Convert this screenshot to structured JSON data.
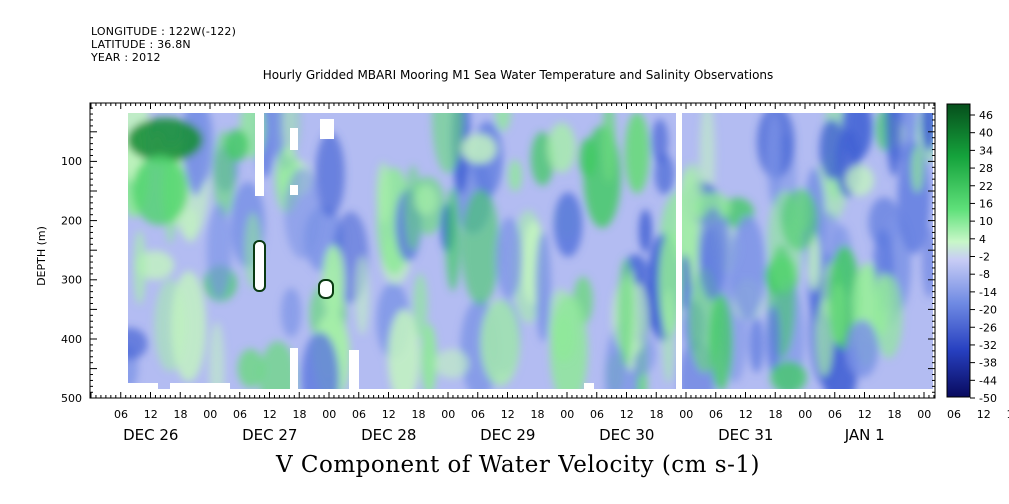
{
  "header": {
    "longitude": "LONGITUDE : 122W(-122)",
    "latitude": "LATITUDE : 36.8N",
    "year": "YEAR : 2012"
  },
  "chart_data": {
    "type": "heatmap",
    "title": "Hourly Gridded MBARI Mooring M1 Sea Water Temperature and Salinity Observations",
    "xlabel": "V Component of Water Velocity (cm s-1)",
    "ylabel": "DEPTH (m)",
    "y_ticks": [
      100,
      200,
      300,
      400,
      500
    ],
    "ylim": [
      500,
      0
    ],
    "x_hour_ticks": [
      "06",
      "12",
      "18",
      "00",
      "06",
      "12",
      "18",
      "00",
      "06",
      "12",
      "18",
      "00",
      "06",
      "12",
      "18",
      "00",
      "06",
      "12",
      "18",
      "00",
      "06",
      "12",
      "18",
      "00",
      "06",
      "12",
      "18",
      "00",
      "06",
      "12",
      "18",
      "00"
    ],
    "x_day_labels": [
      "DEC 26",
      "DEC 27",
      "DEC 28",
      "DEC 29",
      "DEC 30",
      "DEC 31",
      "JAN  1"
    ],
    "colorbar_labels": [
      "46",
      "40",
      "34",
      "28",
      "22",
      "16",
      "10",
      "4",
      "-2",
      "-8",
      "-14",
      "-20",
      "-26",
      "-32",
      "-38",
      "-44",
      "-50"
    ],
    "colors": {
      "strong_negative": "#0a0f6e",
      "mid_negative": "#4f6fd8",
      "weak_negative": "#aab4f0",
      "weak_positive": "#a8f0a8",
      "mid_positive": "#3ed15a",
      "strong_positive": "#064f1c"
    }
  }
}
